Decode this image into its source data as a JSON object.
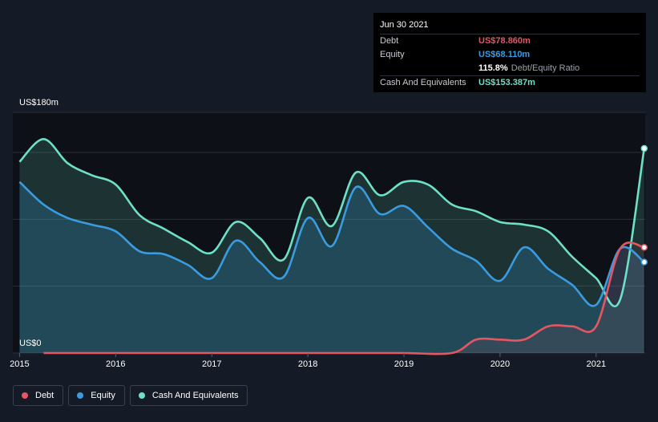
{
  "tooltip": {
    "date": "Jun 30 2021",
    "rows": [
      {
        "label": "Debt",
        "value": "US$78.860m",
        "color": "#e45762"
      },
      {
        "label": "Equity",
        "value": "US$68.110m",
        "color": "#3a9be0"
      },
      {
        "label": "",
        "value": "115.8%",
        "extra": "Debt/Equity Ratio",
        "color": "#ffffff"
      },
      {
        "label": "Cash And Equivalents",
        "value": "US$153.387m",
        "color": "#6fe0c8"
      }
    ]
  },
  "axis": {
    "y_top_label": "US$180m",
    "y_zero_label": "US$0"
  },
  "legend": [
    {
      "label": "Debt",
      "color": "#e45762"
    },
    {
      "label": "Equity",
      "color": "#3a9be0"
    },
    {
      "label": "Cash And Equivalents",
      "color": "#6fe0c8"
    }
  ],
  "chart_data": {
    "type": "area",
    "ylim": [
      0,
      180
    ],
    "xlim": [
      2014.93,
      2021.51
    ],
    "x_ticks": [
      "2015",
      "2016",
      "2017",
      "2018",
      "2019",
      "2020",
      "2021"
    ],
    "x_tick_values": [
      2015,
      2016,
      2017,
      2018,
      2019,
      2020,
      2021
    ],
    "y_unit": "US$m",
    "series": [
      {
        "name": "Cash And Equivalents",
        "color": "#6fe0c8",
        "x": [
          2015.0,
          2015.25,
          2015.5,
          2015.75,
          2016.0,
          2016.25,
          2016.5,
          2016.75,
          2017.0,
          2017.25,
          2017.5,
          2017.75,
          2018.0,
          2018.25,
          2018.5,
          2018.75,
          2019.0,
          2019.25,
          2019.5,
          2019.75,
          2020.0,
          2020.25,
          2020.5,
          2020.75,
          2021.0,
          2021.25,
          2021.5
        ],
        "y": [
          143,
          160,
          142,
          133,
          126,
          103,
          93,
          83,
          75,
          98,
          86,
          70,
          116,
          95,
          135,
          118,
          128,
          126,
          111,
          106,
          98,
          96,
          91,
          72,
          56,
          40,
          153
        ]
      },
      {
        "name": "Equity",
        "color": "#3a9be0",
        "x": [
          2015.0,
          2015.25,
          2015.5,
          2015.75,
          2016.0,
          2016.25,
          2016.5,
          2016.75,
          2017.0,
          2017.25,
          2017.5,
          2017.75,
          2018.0,
          2018.25,
          2018.5,
          2018.75,
          2019.0,
          2019.25,
          2019.5,
          2019.75,
          2020.0,
          2020.25,
          2020.5,
          2020.75,
          2021.0,
          2021.25,
          2021.5
        ],
        "y": [
          128,
          111,
          101,
          96,
          91,
          76,
          74,
          66,
          56,
          84,
          68,
          57,
          101,
          80,
          124,
          104,
          110,
          94,
          78,
          69,
          54,
          79,
          63,
          51,
          36,
          78,
          68
        ]
      },
      {
        "name": "Debt",
        "color": "#e45762",
        "x": [
          2015.25,
          2015.5,
          2016.0,
          2016.5,
          2017.0,
          2017.5,
          2018.0,
          2018.5,
          2019.0,
          2019.5,
          2019.75,
          2020.0,
          2020.25,
          2020.5,
          2020.75,
          2021.0,
          2021.25,
          2021.5
        ],
        "y": [
          0,
          0,
          0,
          0,
          0,
          0,
          0,
          0,
          0,
          0,
          10,
          10,
          10,
          20,
          20,
          20,
          78,
          79
        ]
      }
    ]
  }
}
